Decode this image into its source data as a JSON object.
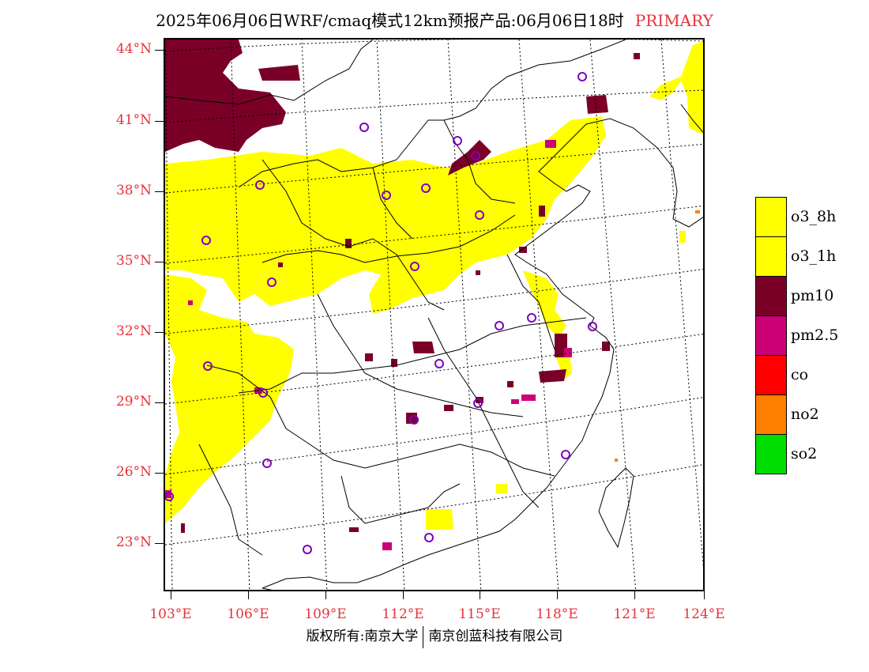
{
  "title": {
    "main": "2025年06月06日WRF/cmaq模式12km预报产品:06月06日18时",
    "type_label": "PRIMARY"
  },
  "map": {
    "lat_labels": [
      "44°N",
      "41°N",
      "38°N",
      "35°N",
      "32°N",
      "29°N",
      "26°N",
      "23°N"
    ],
    "lon_labels": [
      "103°E",
      "106°E",
      "109°E",
      "112°E",
      "115°E",
      "118°E",
      "121°E",
      "124°E"
    ]
  },
  "legend": {
    "items": [
      {
        "label": "o3_8h",
        "color": "#ffff00"
      },
      {
        "label": "o3_1h",
        "color": "#ffff00"
      },
      {
        "label": "pm10",
        "color": "#7a0028"
      },
      {
        "label": "pm2.5",
        "color": "#cc0077"
      },
      {
        "label": "co",
        "color": "#ff0000"
      },
      {
        "label": "no2",
        "color": "#ff7f00"
      },
      {
        "label": "so2",
        "color": "#00dd00"
      }
    ]
  },
  "footer": {
    "left": "版权所有:南京大学",
    "right": "南京创蓝科技有限公司"
  },
  "colors": {
    "label_red": "#e8323a",
    "o3": "#ffff00",
    "pm10": "#7a0028",
    "pm25": "#cc0077",
    "station_marker": "#8000c0"
  }
}
